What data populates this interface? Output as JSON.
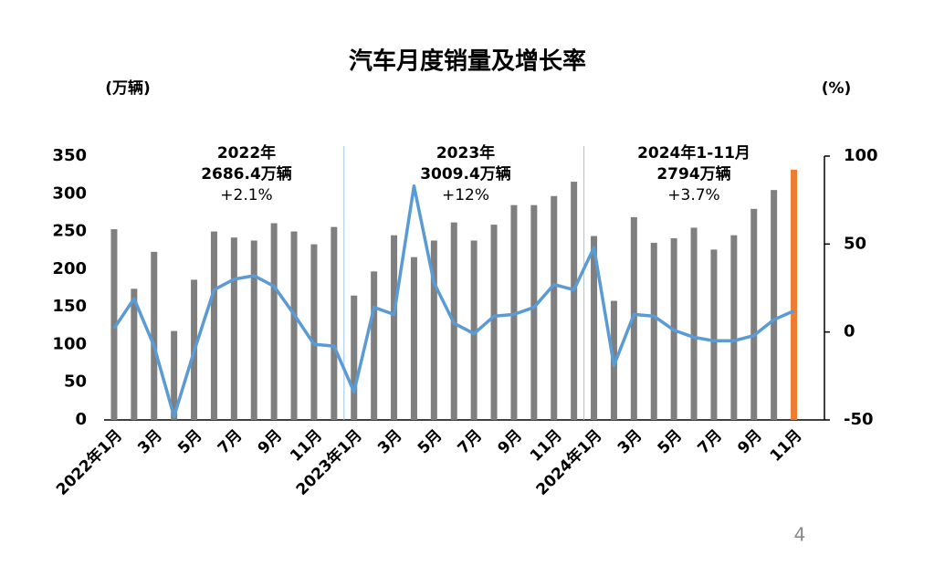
{
  "chart_data": {
    "type": "bar-line",
    "title": "汽车月度销量及增长率",
    "y_axis_label": "(万辆)",
    "y2_axis_label": "(%)",
    "categories": [
      "2022年1月",
      null,
      "3月",
      null,
      "5月",
      null,
      "7月",
      null,
      "9月",
      null,
      "11月",
      null,
      "2023年1月",
      null,
      "3月",
      null,
      "5月",
      null,
      "7月",
      null,
      "9月",
      null,
      "11月",
      null,
      "2024年1月",
      null,
      "3月",
      null,
      "5月",
      null,
      "7月",
      null,
      "9月",
      null,
      "11月"
    ],
    "series": [
      {
        "type": "bar",
        "color": "#7f7f7f",
        "colors": [
          "#7f7f7f",
          "#7f7f7f",
          "#7f7f7f",
          "#7f7f7f",
          "#7f7f7f",
          "#7f7f7f",
          "#7f7f7f",
          "#7f7f7f",
          "#7f7f7f",
          "#7f7f7f",
          "#7f7f7f",
          "#7f7f7f",
          "#7f7f7f",
          "#7f7f7f",
          "#7f7f7f",
          "#7f7f7f",
          "#7f7f7f",
          "#7f7f7f",
          "#7f7f7f",
          "#7f7f7f",
          "#7f7f7f",
          "#7f7f7f",
          "#7f7f7f",
          "#7f7f7f",
          "#7f7f7f",
          "#7f7f7f",
          "#7f7f7f",
          "#7f7f7f",
          "#7f7f7f",
          "#7f7f7f",
          "#7f7f7f",
          "#7f7f7f",
          "#7f7f7f",
          "#7f7f7f",
          "#ed7d31"
        ],
        "values": [
          253,
          174,
          223,
          118,
          186,
          250,
          242,
          238,
          261,
          250,
          233,
          256,
          165,
          197,
          245,
          216,
          238,
          262,
          238,
          259,
          285,
          285,
          297,
          316,
          244,
          158,
          269,
          235,
          241,
          255,
          226,
          245,
          280,
          305,
          332
        ]
      },
      {
        "type": "line",
        "axis": "y2",
        "color": "#5b9bd5",
        "values": [
          2,
          19,
          -8,
          -48,
          -11,
          24,
          30,
          32,
          26,
          10,
          -7,
          -8,
          -34,
          14,
          10,
          83,
          28,
          5,
          -1,
          9,
          10,
          14,
          27,
          24,
          48,
          -19,
          10,
          9,
          1,
          -3,
          -5,
          -5,
          -2,
          7,
          12
        ]
      }
    ],
    "ylim": [
      0,
      350
    ],
    "yticks": [
      0,
      50,
      100,
      150,
      200,
      250,
      300,
      350
    ],
    "y2lim": [
      -50,
      100
    ],
    "y2ticks": [
      -50,
      0,
      50,
      100
    ],
    "annotations": [
      {
        "lines": [
          "2022年",
          "2686.4万辆",
          "+2.1%"
        ]
      },
      {
        "lines": [
          "2023年",
          "3009.4万辆",
          "+12%"
        ]
      },
      {
        "lines": [
          "2024年1-11月",
          "2794万辆",
          "+3.7%"
        ]
      }
    ]
  },
  "page_number": "4"
}
